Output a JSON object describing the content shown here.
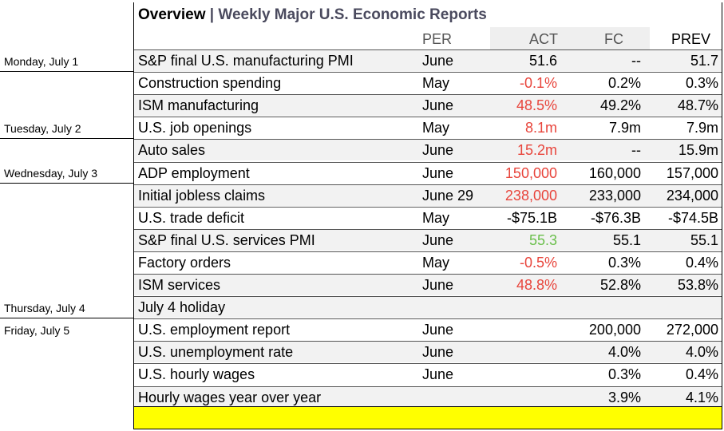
{
  "title": {
    "main": "Overview",
    "separator": " | ",
    "sub": "Weekly Major U.S. Economic Reports"
  },
  "columns": {
    "per": "PER",
    "act": "ACT",
    "fc": "FC",
    "prev": "PREV"
  },
  "days": [
    "Monday, July 1",
    "Tuesday, July 2",
    "Wednesday, July 3",
    "Thursday, July 4",
    "Friday, July 5"
  ],
  "rows": [
    {
      "name": "S&P final U.S. manufacturing PMI",
      "per": "June",
      "act": "51.6",
      "act_color": "black",
      "fc": "--",
      "prev": "51.7"
    },
    {
      "name": "Construction spending",
      "per": "May",
      "act": "-0.1%",
      "act_color": "red",
      "fc": "0.2%",
      "prev": "0.3%"
    },
    {
      "name": "ISM manufacturing",
      "per": "June",
      "act": "48.5%",
      "act_color": "red",
      "fc": "49.2%",
      "prev": "48.7%"
    },
    {
      "name": "U.S. job openings",
      "per": "May",
      "act": "8.1m",
      "act_color": "red",
      "fc": "7.9m",
      "prev": "7.9m"
    },
    {
      "name": "Auto sales",
      "per": "June",
      "act": "15.2m",
      "act_color": "red",
      "fc": "--",
      "prev": "15.9m"
    },
    {
      "name": "ADP employment",
      "per": "June",
      "act": "150,000",
      "act_color": "red",
      "fc": "160,000",
      "prev": "157,000"
    },
    {
      "name": "Initial jobless claims",
      "per": "June 29",
      "act": "238,000",
      "act_color": "red",
      "fc": "233,000",
      "prev": "234,000"
    },
    {
      "name": "U.S. trade deficit",
      "per": "May",
      "act": "-$75.1B",
      "act_color": "black",
      "fc": "-$76.3B",
      "prev": "-$74.5B"
    },
    {
      "name": "S&P final U.S. services PMI",
      "per": "June",
      "act": "55.3",
      "act_color": "green",
      "fc": "55.1",
      "prev": "55.1"
    },
    {
      "name": "Factory orders",
      "per": "May",
      "act": "-0.5%",
      "act_color": "red",
      "fc": "0.3%",
      "prev": "0.4%"
    },
    {
      "name": "ISM services",
      "per": "June",
      "act": "48.8%",
      "act_color": "red",
      "fc": "52.8%",
      "prev": "53.8%"
    },
    {
      "name": "July 4 holiday",
      "per": "",
      "act": "",
      "act_color": "black",
      "fc": "",
      "prev": ""
    },
    {
      "name": "U.S. employment report",
      "per": "June",
      "act": "",
      "act_color": "black",
      "fc": "200,000",
      "prev": "272,000"
    },
    {
      "name": "U.S. unemployment rate",
      "per": "June",
      "act": "",
      "act_color": "black",
      "fc": "4.0%",
      "prev": "4.0%"
    },
    {
      "name": "U.S. hourly wages",
      "per": "June",
      "act": "",
      "act_color": "black",
      "fc": "0.3%",
      "prev": "0.4%"
    },
    {
      "name": "Hourly wages year over year",
      "per": "",
      "act": "",
      "act_color": "black",
      "fc": "3.9%",
      "prev": "4.1%"
    }
  ],
  "colors": {
    "red": "#e8453c",
    "green": "#6abf4b",
    "highlight": "#ffff00"
  }
}
